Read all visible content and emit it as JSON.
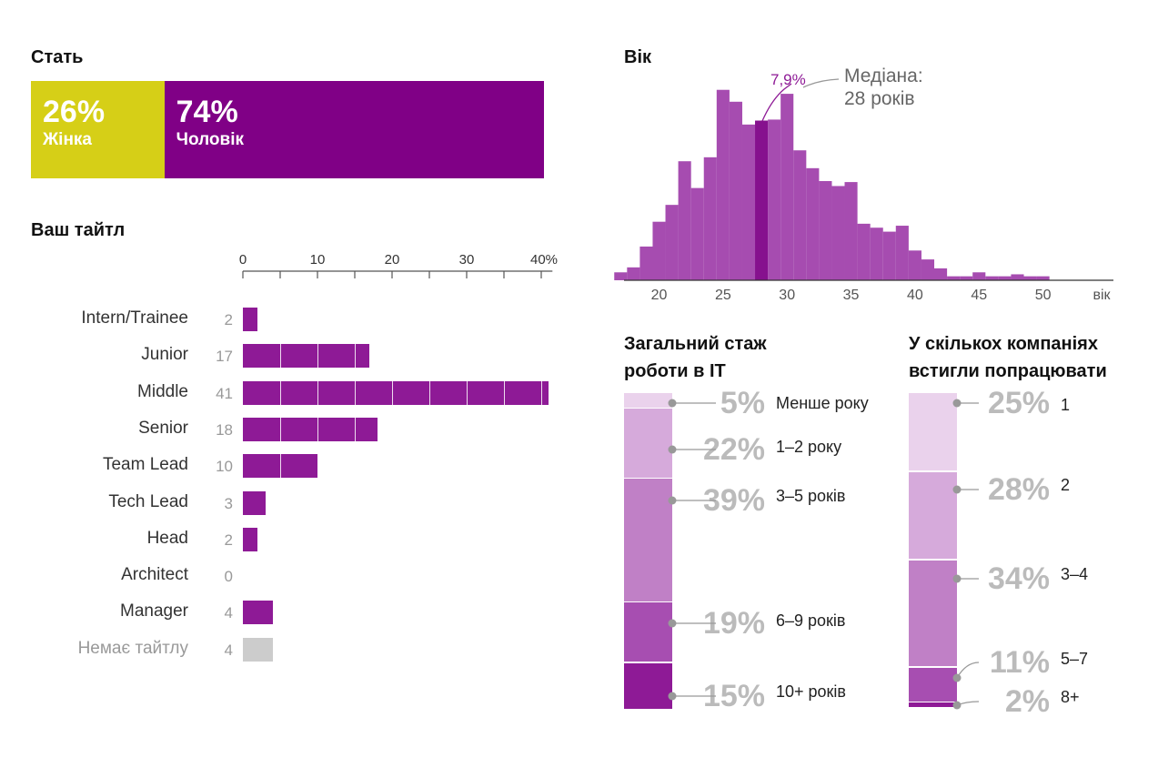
{
  "gender": {
    "title": "Стать",
    "segments": [
      {
        "pct": "26%",
        "label": "Жінка",
        "value": 26,
        "color": "#d6cf17"
      },
      {
        "pct": "74%",
        "label": "Чоловік",
        "value": 74,
        "color": "#800086"
      }
    ]
  },
  "titles": {
    "title": "Ваш тайтл",
    "axis_ticks": [
      "0",
      "10",
      "20",
      "30",
      "40%"
    ],
    "rows": [
      {
        "label": "Intern/Trainee",
        "value": 2,
        "value_label": "2",
        "muted": false
      },
      {
        "label": "Junior",
        "value": 17,
        "value_label": "17",
        "muted": false
      },
      {
        "label": "Middle",
        "value": 41,
        "value_label": "41",
        "muted": false
      },
      {
        "label": "Senior",
        "value": 18,
        "value_label": "18",
        "muted": false
      },
      {
        "label": "Team Lead",
        "value": 10,
        "value_label": "10",
        "muted": false
      },
      {
        "label": "Tech Lead",
        "value": 3,
        "value_label": "3",
        "muted": false
      },
      {
        "label": "Head",
        "value": 2,
        "value_label": "2",
        "muted": false
      },
      {
        "label": "Architect",
        "value": 0,
        "value_label": "0",
        "muted": false
      },
      {
        "label": "Manager",
        "value": 4,
        "value_label": "4",
        "muted": false
      },
      {
        "label": "Немає тайтлу",
        "value": 4,
        "value_label": "4",
        "muted": true
      }
    ]
  },
  "age": {
    "title": "Вік",
    "median_pct_label": "7,9%",
    "median_label_line1": "Медіана:",
    "median_label_line2": "28 років",
    "axis_ticks": [
      "20",
      "25",
      "30",
      "35",
      "40",
      "45",
      "50",
      "вік"
    ]
  },
  "experience": {
    "title_line1": "Загальний стаж",
    "title_line2": "роботи в IT",
    "segments": [
      {
        "pct": "5%",
        "label": "Менше року",
        "value": 5
      },
      {
        "pct": "22%",
        "label": "1–2 року",
        "value": 22
      },
      {
        "pct": "39%",
        "label": "3–5 років",
        "value": 39
      },
      {
        "pct": "19%",
        "label": "6–9 років",
        "value": 19
      },
      {
        "pct": "15%",
        "label": "10+ років",
        "value": 15
      }
    ]
  },
  "companies": {
    "title_line1": "У скількох компаніях",
    "title_line2": "встигли попрацювати",
    "segments": [
      {
        "pct": "25%",
        "label": "1",
        "value": 25
      },
      {
        "pct": "28%",
        "label": "2",
        "value": 28
      },
      {
        "pct": "34%",
        "label": "3–4",
        "value": 34
      },
      {
        "pct": "11%",
        "label": "5–7",
        "value": 11
      },
      {
        "pct": "2%",
        "label": "8+",
        "value": 2
      }
    ]
  },
  "colors": {
    "purple": "#8e1a96",
    "hist": "#a64cb0",
    "hist_median": "#86118e",
    "muted": "#cccccc",
    "pct_gray": "#bbbbbb"
  },
  "chart_data": [
    {
      "type": "bar",
      "title": "Стать",
      "categories": [
        "Жінка",
        "Чоловік"
      ],
      "values": [
        26,
        74
      ],
      "stacked": true
    },
    {
      "type": "bar",
      "title": "Ваш тайтл",
      "orientation": "horizontal",
      "categories": [
        "Intern/Trainee",
        "Junior",
        "Middle",
        "Senior",
        "Team Lead",
        "Tech Lead",
        "Head",
        "Architect",
        "Manager",
        "Немає тайтлу"
      ],
      "values": [
        2,
        17,
        41,
        18,
        10,
        3,
        2,
        0,
        4,
        4
      ],
      "xlim": [
        0,
        40
      ],
      "grid": false
    },
    {
      "type": "bar",
      "title": "Вік",
      "xlabel": "вік",
      "x": [
        17,
        18,
        19,
        20,
        21,
        22,
        23,
        24,
        25,
        26,
        27,
        28,
        29,
        30,
        31,
        32,
        33,
        34,
        35,
        36,
        37,
        38,
        39,
        40,
        41,
        42,
        43,
        44,
        45,
        46,
        47,
        48,
        49,
        50,
        51,
        52,
        53,
        54
      ],
      "values": [
        0.8,
        1.3,
        3.4,
        5.9,
        7.6,
        12.0,
        9.3,
        12.4,
        19.2,
        18.0,
        15.7,
        16.1,
        16.2,
        18.8,
        13.1,
        11.3,
        10.0,
        9.5,
        9.9,
        5.7,
        5.3,
        4.9,
        5.5,
        3.0,
        2.1,
        1.2,
        0.4,
        0.4,
        0.8,
        0.4,
        0.4,
        0.6,
        0.4,
        0.4,
        0,
        0,
        0,
        0
      ],
      "median_bin": 28,
      "median_value": 7.9,
      "xlim": [
        17,
        54
      ]
    },
    {
      "type": "bar",
      "title": "Загальний стаж роботи в IT",
      "stacked": true,
      "categories": [
        "Менше року",
        "1–2 року",
        "3–5 років",
        "6–9 років",
        "10+ років"
      ],
      "values": [
        5,
        22,
        39,
        19,
        15
      ]
    },
    {
      "type": "bar",
      "title": "У скількох компаніях встигли попрацювати",
      "stacked": true,
      "categories": [
        "1",
        "2",
        "3–4",
        "5–7",
        "8+"
      ],
      "values": [
        25,
        28,
        34,
        11,
        2
      ]
    }
  ]
}
